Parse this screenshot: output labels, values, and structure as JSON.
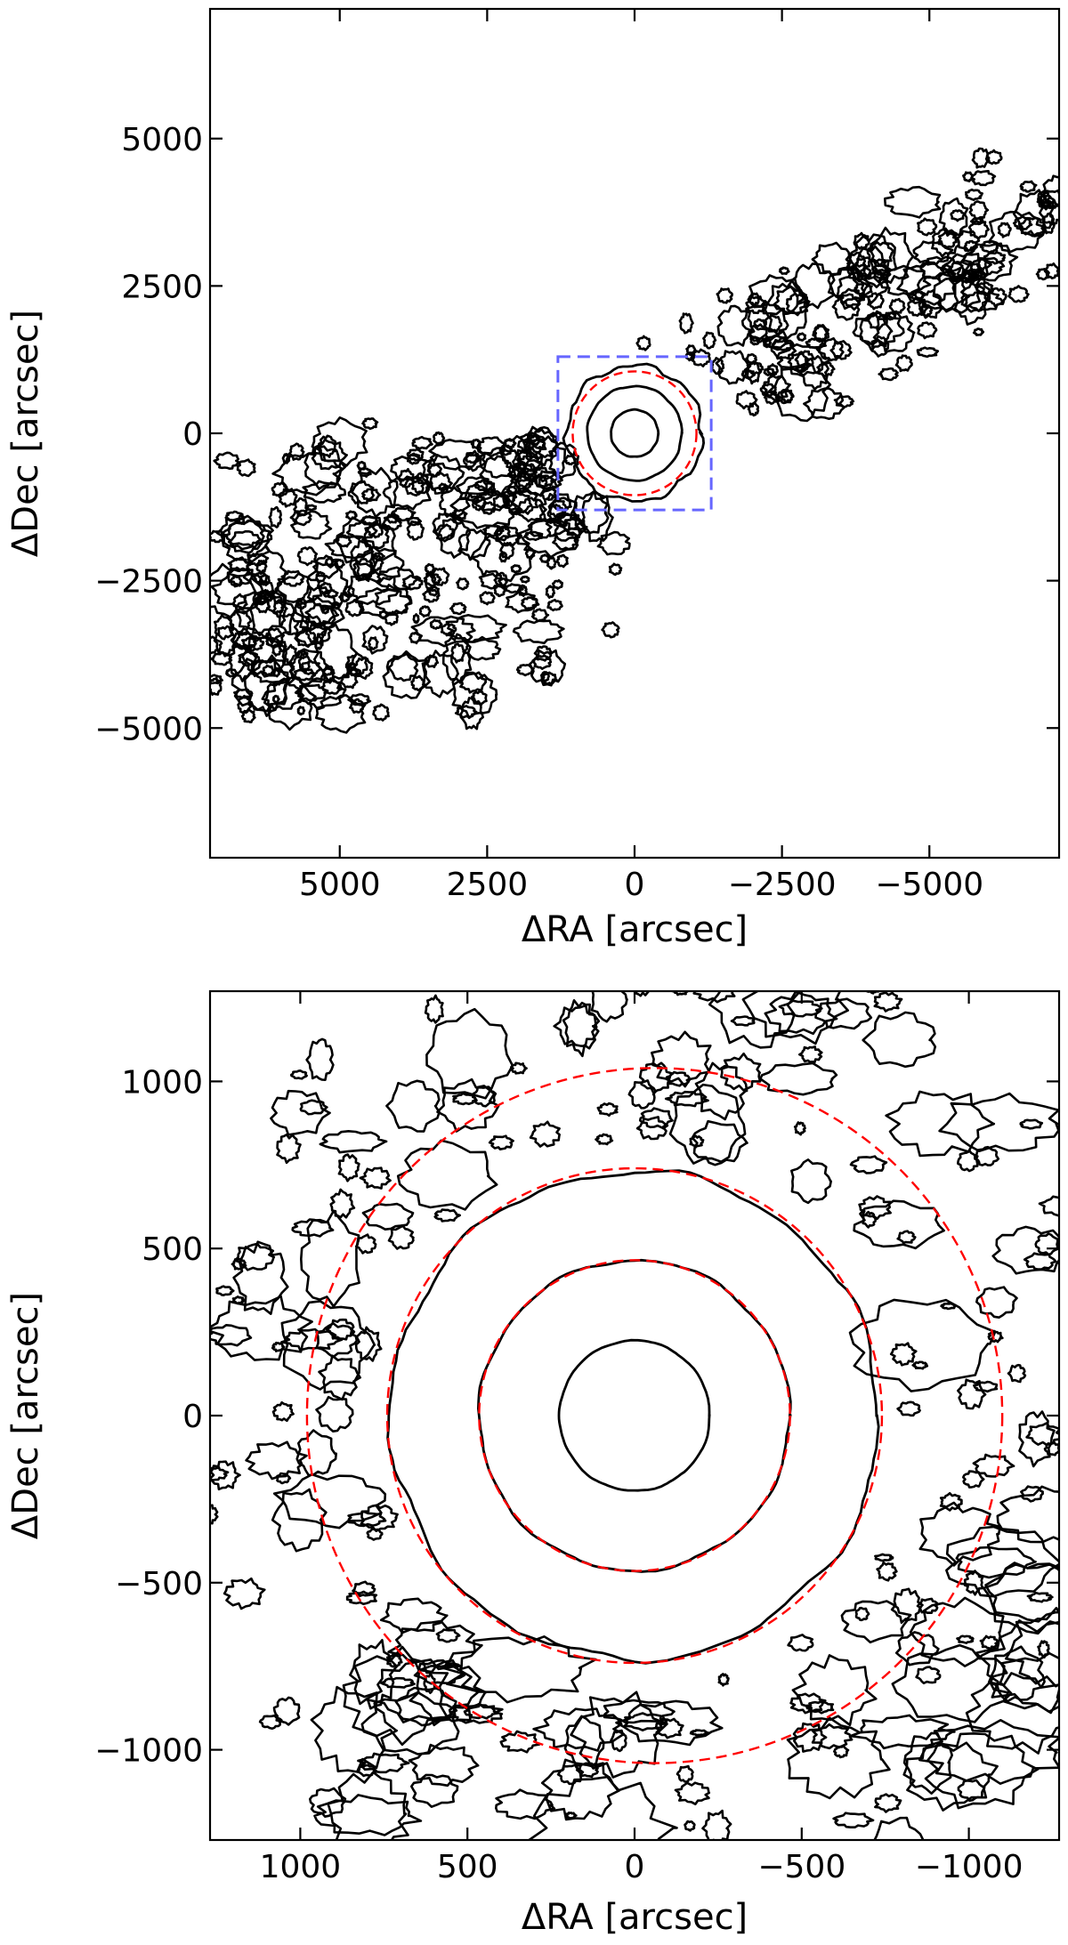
{
  "chart_data": [
    {
      "type": "contour",
      "xlabel": "ΔRA [arcsec]",
      "ylabel": "ΔDec [arcsec]",
      "xlim": [
        7200,
        -7200
      ],
      "ylim": [
        -7200,
        7200
      ],
      "x_ticks": [
        5000,
        2500,
        0,
        -2500,
        -5000
      ],
      "x_tick_labels": [
        "5000",
        "2500",
        "0",
        "−2500",
        "−5000"
      ],
      "y_ticks": [
        5000,
        2500,
        0,
        -2500,
        -5000
      ],
      "y_tick_labels": [
        "5000",
        "2500",
        "0",
        "−2500",
        "−5000"
      ],
      "ticks_direction": "in",
      "colors": {
        "contour": "#000000",
        "ellipse": "#ff0000",
        "zoom_box": "#6666ff"
      },
      "inner_contours": [
        {
          "cx": 0,
          "cy": 0,
          "r": 400
        },
        {
          "cx": 0,
          "cy": 0,
          "r": 800
        },
        {
          "cx": 0,
          "cy": 0,
          "r": 1150
        }
      ],
      "fitted_circle": {
        "cx": 0,
        "cy": 0,
        "r": 1050
      },
      "zoom_box": {
        "x": [
          -1300,
          1300
        ],
        "y": [
          -1300,
          1300
        ]
      },
      "outer_structure": {
        "description_free": true,
        "band_center_angle_deg": 28,
        "band_halfwidth": 2600,
        "lobe_center": [
          4200,
          -3800
        ]
      }
    },
    {
      "type": "contour",
      "xlabel": "ΔRA [arcsec]",
      "ylabel": "ΔDec [arcsec]",
      "xlim": [
        1270,
        -1270
      ],
      "ylim": [
        -1270,
        1270
      ],
      "x_ticks": [
        1000,
        500,
        0,
        -500,
        -1000
      ],
      "x_tick_labels": [
        "1000",
        "500",
        "0",
        "−500",
        "−1000"
      ],
      "y_ticks": [
        1000,
        500,
        0,
        -500,
        -1000
      ],
      "y_tick_labels": [
        "1000",
        "500",
        "0",
        "−500",
        "−1000"
      ],
      "ticks_direction": "in",
      "colors": {
        "contour": "#000000",
        "ellipse": "#ff0000"
      },
      "contours": [
        {
          "cx": 0,
          "cy": 0,
          "r": 225
        },
        {
          "cx": 0,
          "cy": 0,
          "r": 465
        },
        {
          "cx": 0,
          "cy": 0,
          "r": 730
        }
      ],
      "fitted_circles": [
        {
          "cx": 0,
          "cy": 0,
          "r": 465
        },
        {
          "cx": 0,
          "cy": 0,
          "r": 740
        },
        {
          "cx": -60,
          "cy": 0,
          "r": 1040
        }
      ]
    }
  ]
}
